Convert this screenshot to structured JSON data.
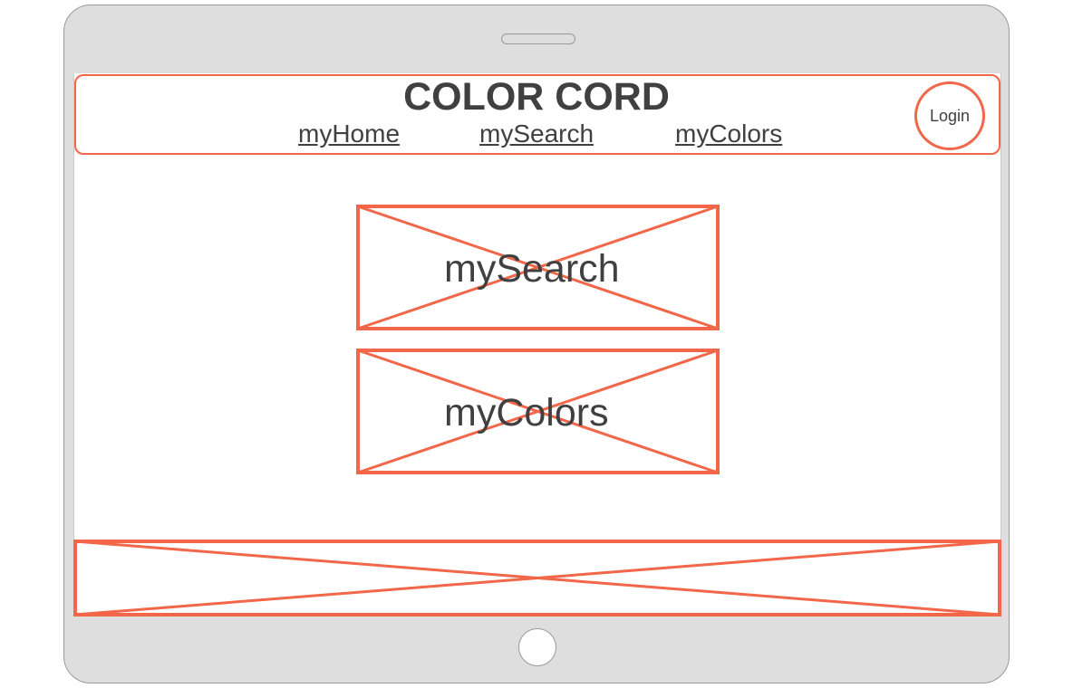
{
  "app": {
    "title": "COLOR CORD"
  },
  "nav": {
    "items": [
      {
        "label": "myHome"
      },
      {
        "label": "mySearch"
      },
      {
        "label": "myColors"
      }
    ]
  },
  "login": {
    "label": "Login"
  },
  "main": {
    "cards": [
      {
        "label": "mySearch"
      },
      {
        "label": "myColors"
      }
    ]
  },
  "colors": {
    "accent": "#f26649",
    "text": "#404040",
    "device": "#dedede"
  }
}
